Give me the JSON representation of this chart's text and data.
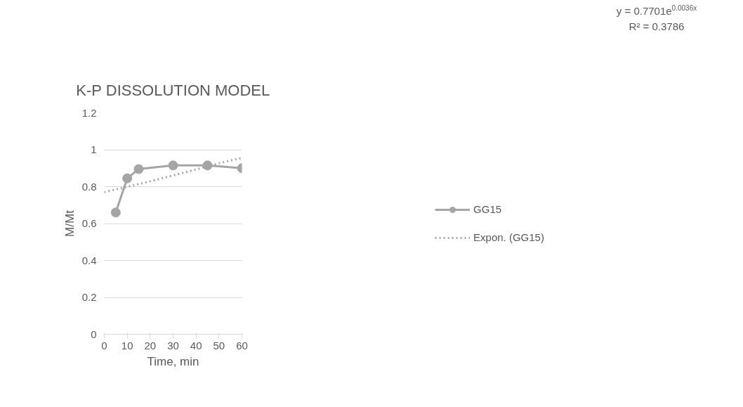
{
  "chart_data": {
    "type": "line",
    "title": "K-P DISSOLUTION MODEL",
    "xlabel": "Time, min",
    "ylabel": "M/Mt",
    "x": [
      5,
      10,
      15,
      30,
      45,
      60
    ],
    "series": [
      {
        "name": "GG15",
        "color": "#a5a5a5",
        "values": [
          0.66,
          0.845,
          0.895,
          0.915,
          0.915,
          0.9
        ],
        "marker": "circle",
        "line_style": "solid"
      },
      {
        "name": "Expon. (GG15)",
        "color": "#a5a5a5",
        "type": "line",
        "x": [
          0,
          10,
          20,
          30,
          40,
          50,
          60
        ],
        "values": [
          0.77,
          0.799,
          0.829,
          0.861,
          0.893,
          0.927,
          0.956
        ],
        "marker": "none",
        "line_style": "dotted"
      }
    ],
    "xlim": [
      0,
      60
    ],
    "xticks": [
      0,
      10,
      20,
      30,
      40,
      50,
      60
    ],
    "ylim": [
      0,
      1.2
    ],
    "yticks": [
      0,
      0.2,
      0.4,
      0.6,
      0.8,
      1,
      1.2
    ],
    "grid": "y",
    "legend": "right",
    "annotations": [
      "y = 0.7701e$^{0.0036x}$",
      "R² = 0.3786"
    ]
  }
}
